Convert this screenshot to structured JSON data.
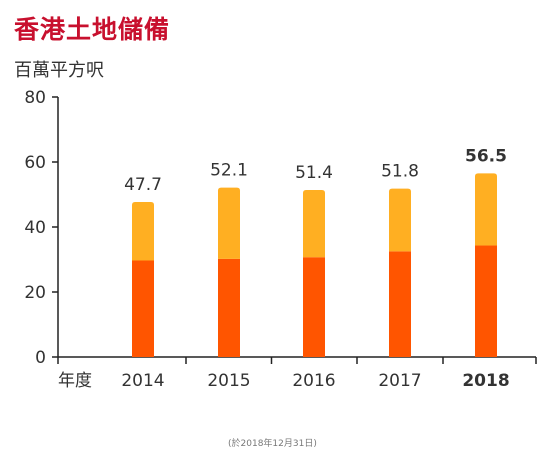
{
  "title": "香港土地儲備",
  "unit_label": "百萬平方呎",
  "x_axis_label": "年度",
  "footnote": "(於2018年12月31日)",
  "colors": {
    "title": "#c8102e",
    "lower": "#ff5500",
    "upper": "#ffaf22",
    "axis": "#222222"
  },
  "chart_data": {
    "type": "bar",
    "stacked": true,
    "categories": [
      "2014",
      "2015",
      "2016",
      "2017",
      "2018"
    ],
    "highlight_category": "2018",
    "totals": [
      47.7,
      52.1,
      51.4,
      51.8,
      56.5
    ],
    "series": [
      {
        "values": [
          29.7,
          30.2,
          30.7,
          32.5,
          34.3
        ]
      },
      {
        "values": [
          18.0,
          21.9,
          20.7,
          19.3,
          22.2
        ]
      }
    ],
    "ylim": [
      0,
      80
    ],
    "yticks": [
      0,
      20,
      40,
      60,
      80
    ],
    "grid": false,
    "legend": "none"
  }
}
